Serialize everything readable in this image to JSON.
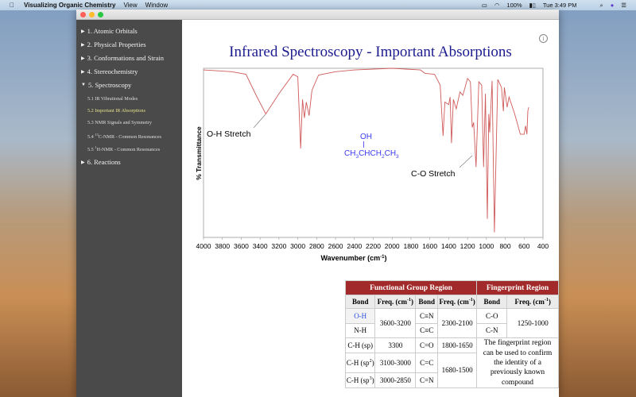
{
  "menubar": {
    "app": "Visualizing Organic Chemistry",
    "items": [
      "View",
      "Window"
    ],
    "battery": "100%",
    "clock": "Tue 3:49 PM"
  },
  "sidebar": {
    "sections": [
      "1. Atomic Orbitals",
      "2. Physical Properties",
      "3. Conformations and Strain",
      "4. Stereochemistry",
      "5. Spectroscopy",
      "6. Reactions"
    ],
    "subitems": [
      {
        "label": "5.1 IR Vibrational Modes"
      },
      {
        "label": "5.2 Important IR Absorptions",
        "active": true
      },
      {
        "label": "5.3 NMR Signals and Symmetry"
      },
      {
        "pre": "5.4 ",
        "sup": "13",
        "label": "C-NMR - Common Resonances"
      },
      {
        "pre": "5.5 ",
        "sup": "1",
        "label": "H-NMR - Common Resonances"
      }
    ]
  },
  "page": {
    "title": "Infrared Spectroscopy - Important Absorptions"
  },
  "chart_data": {
    "type": "line",
    "xlabel": "Wavenumber (cm-1)",
    "xlabel_main": "Wavenumber (cm",
    "xlabel_sup": "-1",
    "xlabel_end": ")",
    "ylabel": "% Transmittance",
    "xlim": [
      4000,
      400
    ],
    "ylim": [
      0,
      100
    ],
    "xticks": [
      "4000",
      "3800",
      "3600",
      "3400",
      "3200",
      "3000",
      "2800",
      "2600",
      "2400",
      "2200",
      "2000",
      "1800",
      "1600",
      "1400",
      "1200",
      "1000",
      "800",
      "600",
      "400"
    ],
    "line_color": "#d05a5a",
    "annotations": {
      "oh": "O-H Stretch",
      "co": "C-O Stretch"
    },
    "molecule": {
      "oh": "OH",
      "formula": "CH3CHCH2CH3"
    },
    "points": [
      [
        4000,
        99
      ],
      [
        3700,
        98
      ],
      [
        3550,
        96.5
      ],
      [
        3450,
        85
      ],
      [
        3340,
        73
      ],
      [
        3200,
        85
      ],
      [
        3050,
        96.5
      ],
      [
        3000,
        95
      ],
      [
        2970,
        52.6
      ],
      [
        2950,
        81.6
      ],
      [
        2930,
        70.6
      ],
      [
        2910,
        80
      ],
      [
        2880,
        72
      ],
      [
        2850,
        87
      ],
      [
        2780,
        96
      ],
      [
        2600,
        98
      ],
      [
        2400,
        99
      ],
      [
        2000,
        100
      ],
      [
        1700,
        99
      ],
      [
        1650,
        97
      ],
      [
        1550,
        96.5
      ],
      [
        1490,
        90
      ],
      [
        1460,
        60
      ],
      [
        1440,
        80
      ],
      [
        1400,
        78.5
      ],
      [
        1385,
        83
      ],
      [
        1370,
        55.7
      ],
      [
        1350,
        81.6
      ],
      [
        1320,
        76
      ],
      [
        1280,
        86
      ],
      [
        1250,
        84
      ],
      [
        1200,
        94
      ],
      [
        1170,
        92
      ],
      [
        1150,
        65
      ],
      [
        1135,
        68
      ],
      [
        1110,
        41.6
      ],
      [
        1080,
        92
      ],
      [
        1050,
        90
      ],
      [
        1030,
        41.6
      ],
      [
        1010,
        85
      ],
      [
        990,
        11
      ],
      [
        975,
        73
      ],
      [
        965,
        62
      ],
      [
        940,
        92.6
      ],
      [
        915,
        3
      ],
      [
        880,
        93.4
      ],
      [
        840,
        88.7
      ],
      [
        820,
        74.6
      ],
      [
        810,
        88.7
      ],
      [
        780,
        77
      ],
      [
        760,
        83
      ],
      [
        700,
        73
      ],
      [
        640,
        61
      ],
      [
        600,
        61
      ],
      [
        585,
        66
      ],
      [
        570,
        61
      ],
      [
        560,
        75
      ],
      [
        550,
        77
      ]
    ]
  },
  "table": {
    "fg_header": "Functional Group Region",
    "fp_header": "Fingerprint Region",
    "bond": "Bond",
    "freq": "Freq. (cm",
    "freq_sup": "-1",
    "freq_end": ")",
    "oh": "O-H",
    "nh": "N-H",
    "ohnh_freq": "3600-3200",
    "cn3": "C≡N",
    "cc3": "C≡C",
    "triple_freq": "2300-2100",
    "co": "C-O",
    "cn": "C-N",
    "fp_freq": "1250-1000",
    "chsp": "C-H (sp)",
    "chsp_freq": "3300",
    "c_o": "C=O",
    "co_freq": "1800-1650",
    "chsp2": "C-H (sp",
    "sup2": "2",
    "chsp2_freq": "3100-3000",
    "c_c": "C=C",
    "chsp3": "C-H (sp",
    "sup3": "3",
    "chsp3_freq": "3000-2850",
    "c_n": "C=N",
    "double_freq": "1680-1500",
    "close": ")",
    "fp_note": "The fingerprint region can be used to confirm the identity of a previously known compound"
  }
}
